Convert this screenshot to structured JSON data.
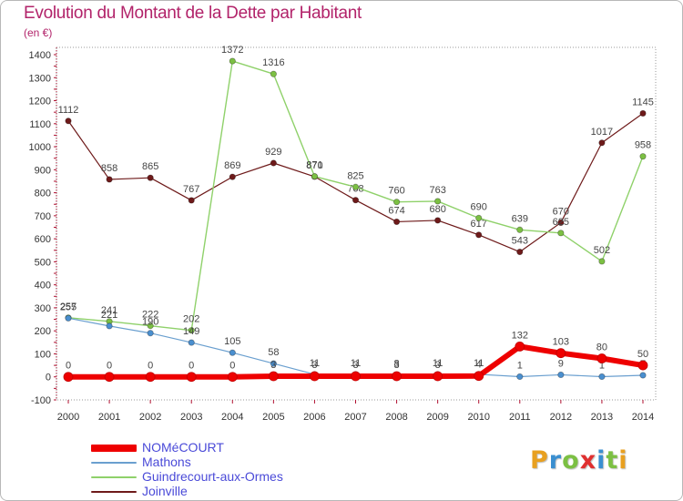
{
  "title": "Evolution du Montant de la Dette par Habitant",
  "unit": "(en €)",
  "logo": {
    "letters": [
      "P",
      "r",
      "o",
      "x",
      "i",
      "t",
      "i"
    ],
    "colors": [
      "#e8a020",
      "#3a8fd0",
      "#7cc043",
      "#e03030",
      "#3a8fd0",
      "#7cc043",
      "#e8a020"
    ]
  },
  "chart_data": {
    "type": "line",
    "x": [
      "2000",
      "2001",
      "2002",
      "2003",
      "2004",
      "2005",
      "2006",
      "2007",
      "2008",
      "2009",
      "2010",
      "2011",
      "2012",
      "2013",
      "2014"
    ],
    "ylim": [
      -100,
      1400
    ],
    "yticks": [
      -100,
      0,
      100,
      200,
      300,
      400,
      500,
      600,
      700,
      800,
      900,
      1000,
      1100,
      1200,
      1300,
      1400
    ],
    "grid": false,
    "legend_position": "bottom-left",
    "series": [
      {
        "name": "Joinville",
        "color": "#6e1a1a",
        "dot": "#6e1a1a",
        "width": 1.2,
        "values": [
          1112,
          858,
          865,
          767,
          869,
          929,
          870,
          768,
          674,
          680,
          617,
          543,
          670,
          1017,
          1145
        ],
        "labels": [
          "1112",
          "858",
          "865",
          "767",
          "869",
          "929",
          "870",
          "768",
          "674",
          "680",
          "617",
          "543",
          "670",
          "1017",
          "1145"
        ]
      },
      {
        "name": "Guindrecourt-aux-Ormes",
        "color": "#8fd16a",
        "dot": "#7cc043",
        "width": 1.4,
        "values": [
          257,
          241,
          222,
          202,
          1372,
          1316,
          871,
          825,
          760,
          763,
          690,
          639,
          625,
          502,
          958
        ],
        "labels": [
          "257",
          "241",
          "222",
          "202",
          "1372",
          "1316",
          "871",
          "825",
          "760",
          "763",
          "690",
          "639",
          "625",
          "502",
          "958"
        ]
      },
      {
        "name": "Mathons",
        "color": "#6a9fcf",
        "dot": "#4a8fcf",
        "width": 1.2,
        "values": [
          255,
          221,
          190,
          149,
          105,
          58,
          11,
          11,
          8,
          11,
          11,
          1,
          9,
          1,
          7
        ],
        "labels": [
          "255",
          "221",
          "190",
          "149",
          "105",
          "58",
          "11",
          "11",
          "8",
          "11",
          "11",
          "1",
          "9",
          "1",
          "7"
        ]
      },
      {
        "name": "NOMéCOURT",
        "color": "#ee0000",
        "dot": "#ee0000",
        "width": 6,
        "values": [
          0,
          0,
          0,
          0,
          0,
          3,
          3,
          3,
          3,
          3,
          4,
          132,
          103,
          80,
          50
        ],
        "labels": [
          "0",
          "0",
          "0",
          "0",
          "0",
          "3",
          "3",
          "3",
          "3",
          "3",
          "4",
          "132",
          "103",
          "80",
          "50"
        ]
      }
    ]
  },
  "legend": [
    {
      "name": "NOMéCOURT",
      "color": "#ee0000",
      "thickness": 8
    },
    {
      "name": "Mathons",
      "color": "#6a9fcf",
      "thickness": 2
    },
    {
      "name": "Guindrecourt-aux-Ormes",
      "color": "#8fd16a",
      "thickness": 2
    },
    {
      "name": "Joinville",
      "color": "#6e1a1a",
      "thickness": 2
    }
  ]
}
